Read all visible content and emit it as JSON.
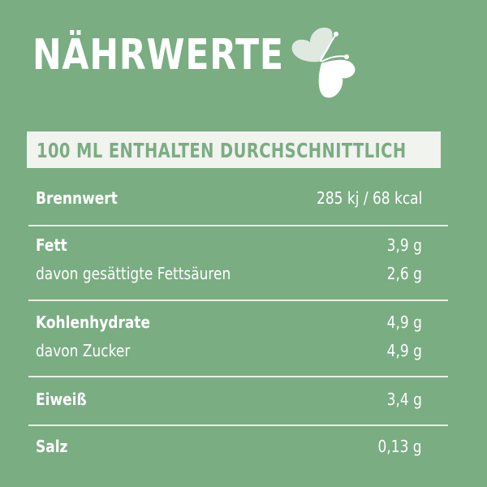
{
  "title": "NÄHRWERTE",
  "banner": "100 ML ENTHALTEN DURCHSCHNITTLICH",
  "rows": [
    {
      "label": "Brennwert",
      "value": "285 kj / 68 kcal"
    },
    {
      "label": "Fett",
      "value": "3,9 g"
    },
    {
      "label": "davon gesättigte Fettsäuren",
      "value": "2,6 g"
    },
    {
      "label": "Kohlenhydrate",
      "value": "4,9 g"
    },
    {
      "label": "davon Zucker",
      "value": "4,9 g"
    },
    {
      "label": "Eiweiß",
      "value": "3,4 g"
    },
    {
      "label": "Salz",
      "value": "0,13 g"
    }
  ],
  "colors": {
    "background": "#7aad82",
    "text": "#ffffff",
    "banner": "#f1f3ef"
  },
  "icon": "butterfly-icon"
}
